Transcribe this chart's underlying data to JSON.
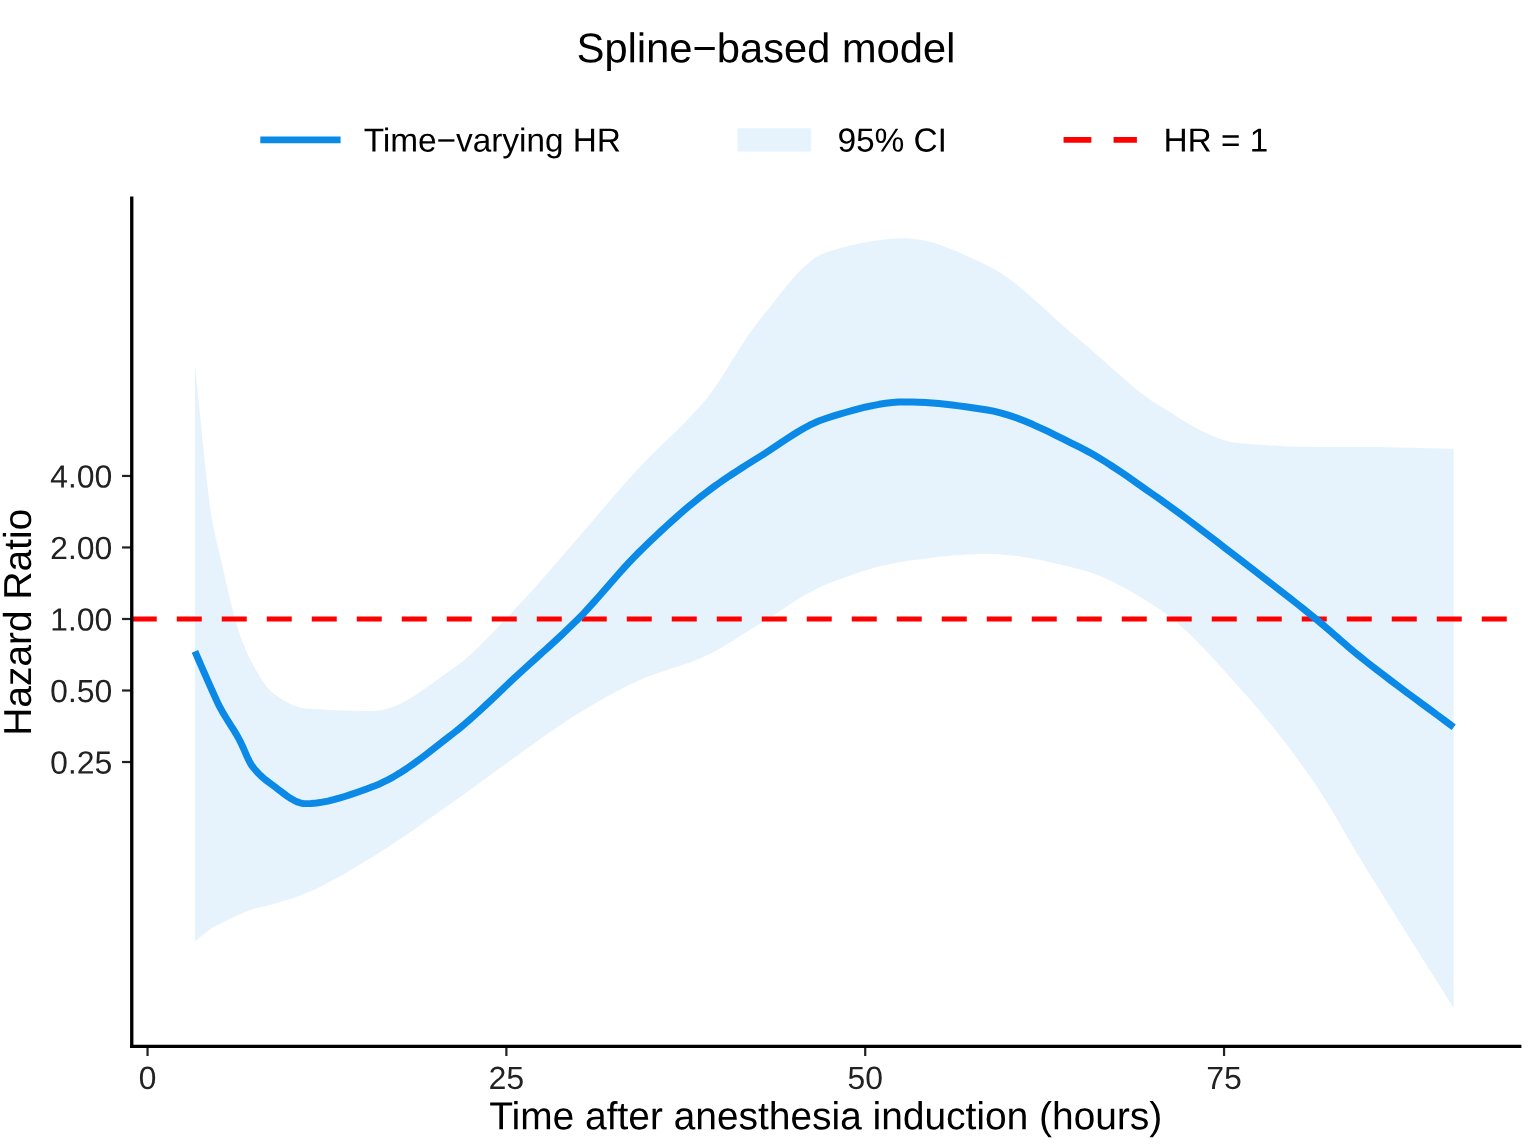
{
  "chart_data": {
    "type": "line",
    "title": "Spline−based model",
    "xlabel": "Time after anesthesia induction (hours)",
    "ylabel": "Hazard Ratio",
    "series": [
      {
        "name": "Time−varying HR",
        "color": "#0a8ae6",
        "x": [
          3.3,
          4.5,
          5.0,
          6.4,
          7.3,
          8.7,
          11.0,
          15.7,
          21.3,
          25.9,
          30.0,
          34.2,
          38.9,
          42.6,
          47.3,
          52.8,
          58.4,
          64.9,
          70.5,
          76.0,
          81.4,
          84.4,
          91.0
        ],
        "values": [
          0.73,
          0.5,
          0.43,
          0.31,
          0.24,
          0.2,
          0.167,
          0.197,
          0.33,
          0.59,
          1.0,
          1.9,
          3.4,
          4.8,
          7.0,
          8.2,
          7.6,
          5.3,
          3.2,
          1.8,
          1.0,
          0.7,
          0.35
        ],
        "lower": [
          0.044,
          0.05,
          0.052,
          0.057,
          0.06,
          0.063,
          0.07,
          0.1,
          0.17,
          0.27,
          0.4,
          0.55,
          0.7,
          0.95,
          1.4,
          1.75,
          1.88,
          1.62,
          1.1,
          0.52,
          0.2,
          0.1,
          0.023
        ],
        "upper": [
          11.7,
          2.6,
          1.9,
          0.87,
          0.65,
          0.49,
          0.42,
          0.41,
          0.62,
          1.15,
          2.2,
          4.3,
          8.4,
          18,
          35,
          40,
          31,
          15,
          7.9,
          5.5,
          5.3,
          5.3,
          5.2
        ]
      }
    ],
    "annotations": [
      "95% CI"
    ],
    "ref_lines": [
      {
        "axis": "y",
        "value": 1,
        "label": "HR = 1",
        "color": "#ff0000",
        "line_style": "dashed"
      }
    ],
    "log": "y",
    "xlim": [
      -1.1,
      95.6
    ],
    "xticks": [
      0,
      25,
      50,
      75
    ],
    "ylim": [
      0.0159,
      59
    ],
    "yticks": [
      {
        "value": 0.25,
        "label": "0.25"
      },
      {
        "value": 0.5,
        "label": "0.50"
      },
      {
        "value": 1,
        "label": "1.00"
      },
      {
        "value": 2,
        "label": "2.00"
      },
      {
        "value": 4,
        "label": "4.00"
      }
    ],
    "grid": false,
    "legend": "top",
    "line_style": "solid"
  }
}
